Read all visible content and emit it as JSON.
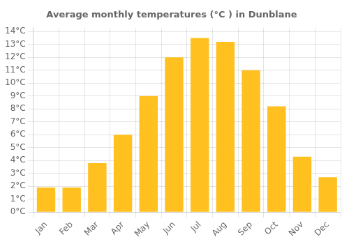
{
  "chart_data": {
    "type": "bar",
    "title": "Average monthly temperatures (°C ) in Dunblane",
    "categories": [
      "Jan",
      "Feb",
      "Mar",
      "Apr",
      "May",
      "Jun",
      "Jul",
      "Aug",
      "Sep",
      "Oct",
      "Nov",
      "Dec"
    ],
    "values": [
      1.9,
      1.9,
      3.8,
      6.0,
      9.0,
      12.0,
      13.5,
      13.2,
      11.0,
      8.2,
      4.3,
      2.7
    ],
    "color": "#FFC020",
    "ylim": [
      0,
      14.3
    ],
    "yticks": [
      {
        "value": 0,
        "label": "0°C"
      },
      {
        "value": 1,
        "label": "1°C"
      },
      {
        "value": 2,
        "label": "2°C"
      },
      {
        "value": 3,
        "label": "3°C"
      },
      {
        "value": 4,
        "label": "4°C"
      },
      {
        "value": 5,
        "label": "5°C"
      },
      {
        "value": 6,
        "label": "6°C"
      },
      {
        "value": 7,
        "label": "7°C"
      },
      {
        "value": 8,
        "label": "8°C"
      },
      {
        "value": 9,
        "label": "9°C"
      },
      {
        "value": 10,
        "label": "10°C"
      },
      {
        "value": 11,
        "label": "11°C"
      },
      {
        "value": 12,
        "label": "12°C"
      },
      {
        "value": 13,
        "label": "13°C"
      },
      {
        "value": 14,
        "label": "14°C"
      }
    ],
    "grid": true
  }
}
